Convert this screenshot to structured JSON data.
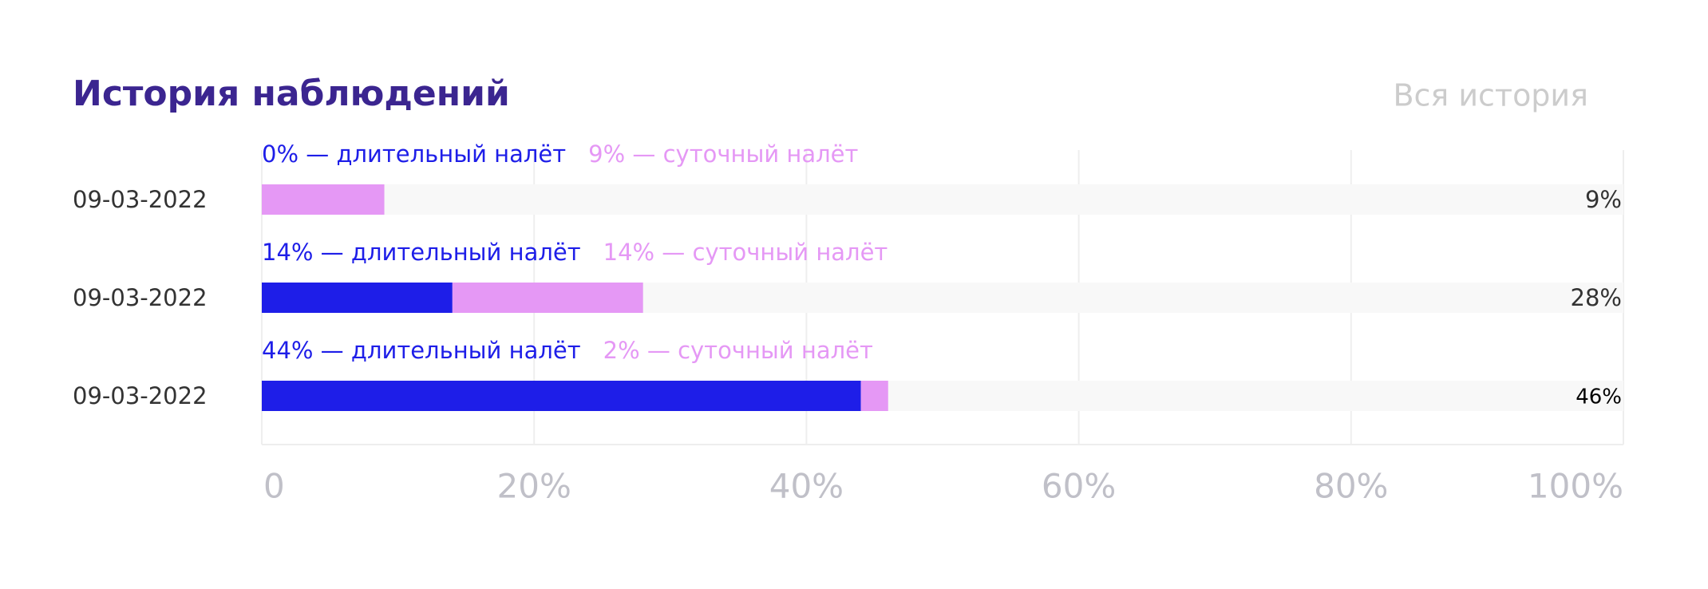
{
  "chart_data": {
    "type": "stacked-bar-horizontal",
    "title": "История наблюдений",
    "link": "Вся история",
    "categories": [
      "09-03-2022",
      "09-03-2022",
      "09-03-2022"
    ],
    "series": [
      {
        "color": "#1e1ee8",
        "values": [
          0,
          14,
          44
        ],
        "value_labels": [
          "0% — длительный налёт",
          "14% — длительный налёт",
          "44% — длительный налёт"
        ]
      },
      {
        "color": "#e598f5",
        "values": [
          9,
          14,
          2
        ],
        "value_labels": [
          "9% — суточный налёт",
          "14% — суточный налёт",
          "2% — суточный налёт"
        ]
      }
    ],
    "total_labels": [
      "9%",
      "28%",
      "46%"
    ],
    "xlim": [
      0,
      100
    ],
    "xticks": [
      0,
      {
        "value": 20,
        "label": "20%"
      },
      {
        "value": 40,
        "label": "40%"
      },
      {
        "value": 60,
        "label": "60%"
      },
      {
        "value": 80,
        "label": "80%"
      },
      {
        "value": 100,
        "label": "100%"
      }
    ],
    "grid": true
  }
}
